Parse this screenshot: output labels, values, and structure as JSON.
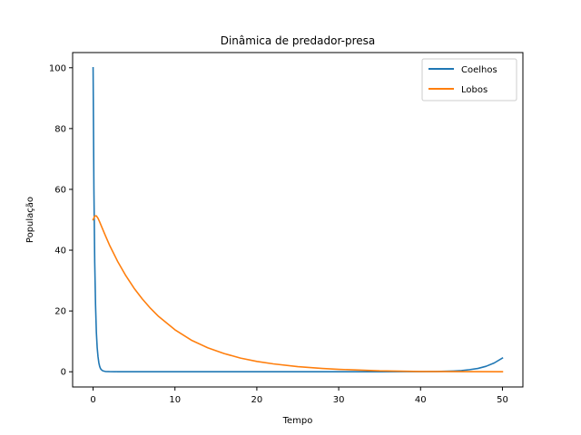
{
  "chart_data": {
    "type": "line",
    "title": "Dinâmica de predador-presa",
    "xlabel": "Tempo",
    "ylabel": "População",
    "xlim": [
      -2.5,
      52.5
    ],
    "ylim": [
      -5,
      105
    ],
    "xticks": [
      0,
      10,
      20,
      30,
      40,
      50
    ],
    "yticks": [
      0,
      20,
      40,
      60,
      80,
      100
    ],
    "grid": false,
    "legend_position": "top-right",
    "series": [
      {
        "name": "Coelhos",
        "color": "#1f77b4",
        "x": [
          0,
          0.1,
          0.2,
          0.3,
          0.4,
          0.5,
          0.6,
          0.7,
          0.8,
          0.9,
          1.0,
          1.2,
          1.5,
          2,
          3,
          5,
          10,
          15,
          20,
          25,
          30,
          35,
          38,
          40,
          42,
          43,
          44,
          45,
          46,
          47,
          48,
          49,
          50
        ],
        "y": [
          100,
          60,
          36,
          22,
          13,
          8,
          5,
          3,
          1.8,
          1.1,
          0.7,
          0.3,
          0.1,
          0.05,
          0.02,
          0.01,
          0.0,
          0.0,
          0.0,
          0.0,
          0.0,
          0.01,
          0.03,
          0.05,
          0.1,
          0.15,
          0.25,
          0.4,
          0.7,
          1.1,
          1.8,
          2.9,
          4.5
        ]
      },
      {
        "name": "Lobos",
        "color": "#ff7f0e",
        "x": [
          0,
          0.2,
          0.4,
          0.6,
          0.8,
          1,
          1.5,
          2,
          3,
          4,
          5,
          6,
          7,
          8,
          10,
          12,
          14,
          16,
          18,
          20,
          22,
          25,
          28,
          30,
          35,
          40,
          45,
          50
        ],
        "y": [
          50,
          51.2,
          51.3,
          50.5,
          49.3,
          48,
          44.8,
          41.7,
          36.3,
          31.6,
          27.5,
          24,
          20.9,
          18.2,
          13.8,
          10.4,
          7.9,
          6,
          4.5,
          3.4,
          2.6,
          1.7,
          1.1,
          0.8,
          0.3,
          0.1,
          0.05,
          0.02
        ]
      }
    ]
  }
}
